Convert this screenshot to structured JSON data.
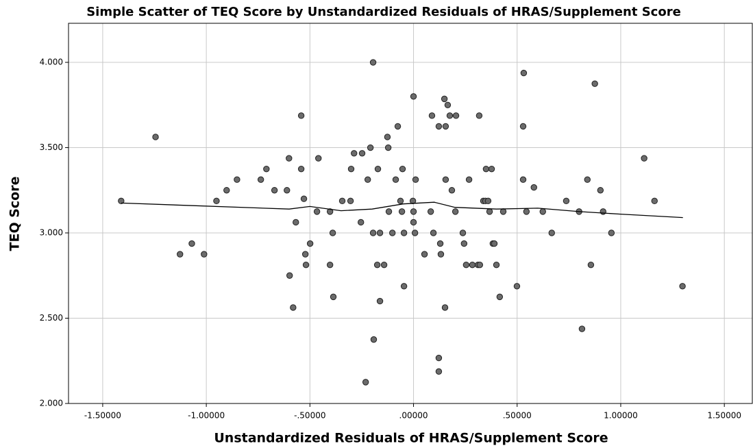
{
  "chart_data": {
    "type": "scatter",
    "title": "Simple Scatter of TEQ Score by Unstandardized Residuals of HRAS/Supplement Score",
    "x_label": "Unstandardized Residuals of HRAS/Supplement Score",
    "y_label": "TEQ Score",
    "color": "#6b6b6b",
    "grid": true,
    "xlim": [
      -1.665,
      1.635
    ],
    "ylim": [
      2.0,
      4.229
    ],
    "xticks": [
      {
        "value": -1.5,
        "label": "-1.50000"
      },
      {
        "value": -1.0,
        "label": "-1.00000"
      },
      {
        "value": -0.5,
        "label": "-.50000"
      },
      {
        "value": 0,
        "label": ".00000"
      },
      {
        "value": 0.5,
        "label": ".50000"
      },
      {
        "value": 1.0,
        "label": "1.00000"
      },
      {
        "value": 1.5,
        "label": "1.50000"
      }
    ],
    "yticks": [
      {
        "value": 2.0,
        "label": "2.000"
      },
      {
        "value": 2.5,
        "label": "2.500"
      },
      {
        "value": 3.0,
        "label": "3.000"
      },
      {
        "value": 3.5,
        "label": "3.500"
      },
      {
        "value": 4.0,
        "label": "4.000"
      }
    ],
    "x": [
      -1.411,
      -1.245,
      -1.127,
      -1.07,
      -1.011,
      -0.951,
      -0.902,
      -0.852,
      -0.737,
      -0.71,
      -0.671,
      -0.611,
      -0.601,
      -0.598,
      -0.581,
      -0.568,
      -0.542,
      -0.542,
      -0.529,
      -0.522,
      -0.519,
      -0.499,
      -0.466,
      -0.459,
      -0.403,
      -0.403,
      -0.39,
      -0.387,
      -0.344,
      -0.304,
      -0.301,
      -0.287,
      -0.254,
      -0.248,
      -0.231,
      -0.221,
      -0.208,
      -0.195,
      -0.195,
      -0.192,
      -0.175,
      -0.172,
      -0.162,
      -0.162,
      -0.142,
      -0.126,
      -0.122,
      -0.119,
      -0.102,
      -0.086,
      -0.076,
      -0.063,
      -0.056,
      -0.053,
      -0.046,
      -0.046,
      -0.003,
      0.0,
      0.0,
      0.0,
      0.007,
      0.01,
      0.053,
      0.083,
      0.089,
      0.096,
      0.122,
      0.122,
      0.122,
      0.129,
      0.132,
      0.149,
      0.155,
      0.155,
      0.152,
      0.165,
      0.175,
      0.185,
      0.202,
      0.205,
      0.238,
      0.244,
      0.254,
      0.268,
      0.284,
      0.311,
      0.32,
      0.317,
      0.337,
      0.347,
      0.35,
      0.36,
      0.367,
      0.377,
      0.383,
      0.39,
      0.4,
      0.416,
      0.433,
      0.499,
      0.532,
      0.529,
      0.529,
      0.545,
      0.581,
      0.624,
      0.667,
      0.737,
      0.799,
      0.813,
      0.839,
      0.856,
      0.875,
      0.902,
      0.915,
      0.955,
      1.113,
      1.163,
      1.298
    ],
    "values": [
      3.1875,
      3.5625,
      2.875,
      2.9375,
      2.875,
      3.1875,
      3.25,
      3.3125,
      3.3125,
      3.375,
      3.25,
      3.25,
      3.4375,
      2.75,
      2.5625,
      3.0625,
      3.6875,
      3.375,
      3.2,
      2.875,
      2.8125,
      2.9375,
      3.125,
      3.4375,
      2.8125,
      3.125,
      3.0,
      2.625,
      3.1875,
      3.1875,
      3.375,
      3.4667,
      3.0625,
      3.4667,
      2.125,
      3.3125,
      3.5,
      4.0,
      3.0,
      2.375,
      2.8125,
      3.375,
      3.0,
      2.6,
      2.8125,
      3.5625,
      3.5,
      3.125,
      3.0,
      3.3125,
      3.625,
      3.1875,
      3.125,
      3.375,
      3.0,
      2.6875,
      3.1875,
      3.8,
      3.0625,
      3.125,
      3.0,
      3.3125,
      2.875,
      3.125,
      3.6875,
      3.0,
      3.625,
      2.2667,
      2.1875,
      2.9375,
      2.875,
      3.7857,
      3.625,
      3.3125,
      2.5625,
      3.75,
      3.6875,
      3.25,
      3.125,
      3.6875,
      3.0,
      2.9375,
      2.8125,
      3.3125,
      2.8125,
      2.8125,
      2.8125,
      3.6875,
      3.1875,
      3.1875,
      3.375,
      3.1875,
      3.125,
      3.375,
      2.9375,
      2.9375,
      2.8125,
      2.625,
      3.125,
      2.6875,
      3.9375,
      3.625,
      3.3125,
      3.125,
      3.2667,
      3.125,
      3.0,
      3.1875,
      3.125,
      2.4375,
      3.3125,
      2.8125,
      3.875,
      3.25,
      3.125,
      3.0,
      3.4375,
      3.1875,
      2.6875
    ],
    "fit_line": {
      "x": [
        -1.41,
        -0.6,
        -0.5,
        -0.35,
        -0.2,
        -0.05,
        0.1,
        0.2,
        0.4,
        0.6,
        0.8,
        1.0,
        1.3
      ],
      "values": [
        3.175,
        3.14,
        3.155,
        3.13,
        3.14,
        3.17,
        3.18,
        3.15,
        3.14,
        3.145,
        3.125,
        3.11,
        3.09
      ]
    }
  }
}
